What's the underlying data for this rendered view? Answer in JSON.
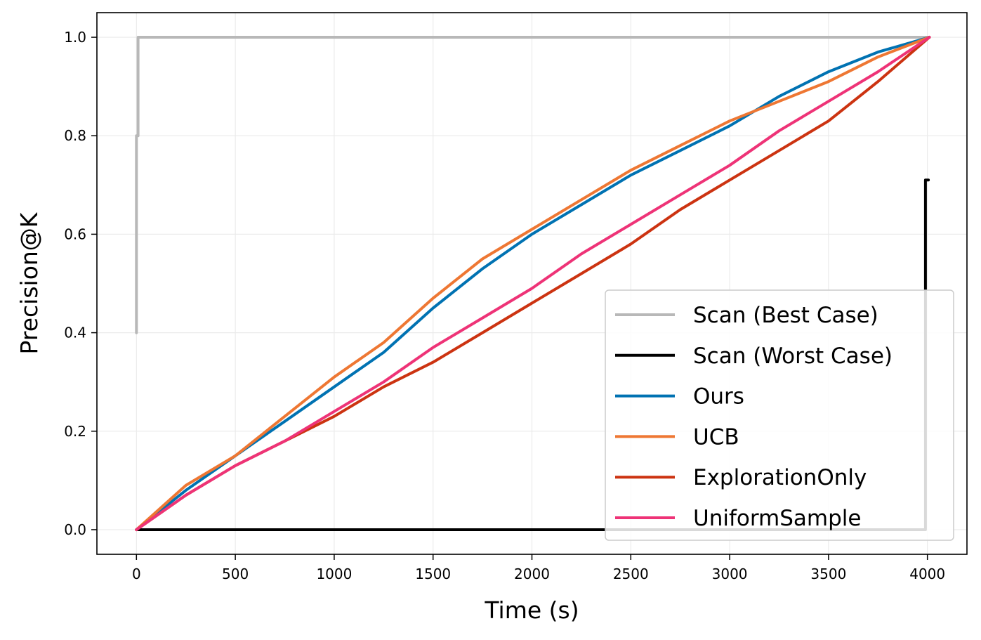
{
  "chart_data": {
    "type": "line",
    "title": "",
    "xlabel": "Time (s)",
    "ylabel": "Precision@K",
    "xlim": [
      -200,
      4200
    ],
    "ylim": [
      -0.05,
      1.05
    ],
    "xticks": [
      0,
      500,
      1000,
      1500,
      2000,
      2500,
      3000,
      3500,
      4000
    ],
    "xtick_labels": [
      "0",
      "500",
      "1000",
      "1500",
      "2000",
      "2500",
      "3000",
      "3500",
      "4000"
    ],
    "yticks": [
      0.0,
      0.2,
      0.4,
      0.6,
      0.8,
      1.0
    ],
    "ytick_labels": [
      "0.0",
      "0.2",
      "0.4",
      "0.6",
      "0.8",
      "1.0"
    ],
    "grid": true,
    "legend_position": "lower-right",
    "series": [
      {
        "name": "Scan (Best Case)",
        "color": "#b8b8b8",
        "x": [
          0,
          0,
          8,
          8,
          15,
          4010
        ],
        "y": [
          0.4,
          0.8,
          0.8,
          1.0,
          1.0,
          1.0
        ]
      },
      {
        "name": "Scan (Worst Case)",
        "color": "#000000",
        "x": [
          0,
          3990,
          3990,
          4000,
          4005
        ],
        "y": [
          0.0,
          0.0,
          0.71,
          0.71,
          0.71
        ]
      },
      {
        "name": "Ours",
        "color": "#0072b2",
        "x": [
          0,
          250,
          500,
          750,
          1000,
          1250,
          1500,
          1750,
          2000,
          2250,
          2500,
          2750,
          3000,
          3250,
          3500,
          3750,
          4010
        ],
        "y": [
          0.0,
          0.08,
          0.15,
          0.22,
          0.29,
          0.36,
          0.45,
          0.53,
          0.6,
          0.66,
          0.72,
          0.77,
          0.82,
          0.88,
          0.93,
          0.97,
          1.0
        ]
      },
      {
        "name": "UCB",
        "color": "#ee7733",
        "x": [
          0,
          250,
          500,
          750,
          1000,
          1250,
          1500,
          1750,
          2000,
          2250,
          2500,
          2750,
          3000,
          3250,
          3500,
          3750,
          4010
        ],
        "y": [
          0.0,
          0.09,
          0.15,
          0.23,
          0.31,
          0.38,
          0.47,
          0.55,
          0.61,
          0.67,
          0.73,
          0.78,
          0.83,
          0.87,
          0.91,
          0.96,
          1.0
        ]
      },
      {
        "name": "ExplorationOnly",
        "color": "#cc3311",
        "x": [
          0,
          250,
          500,
          750,
          1000,
          1250,
          1500,
          1750,
          2000,
          2250,
          2500,
          2750,
          3000,
          3250,
          3500,
          3750,
          4010
        ],
        "y": [
          0.0,
          0.07,
          0.13,
          0.18,
          0.23,
          0.29,
          0.34,
          0.4,
          0.46,
          0.52,
          0.58,
          0.65,
          0.71,
          0.77,
          0.83,
          0.91,
          1.0
        ]
      },
      {
        "name": "UniformSample",
        "color": "#ee3377",
        "x": [
          0,
          250,
          500,
          750,
          1000,
          1250,
          1500,
          1750,
          2000,
          2250,
          2500,
          2750,
          3000,
          3250,
          3500,
          3750,
          4010
        ],
        "y": [
          0.0,
          0.07,
          0.13,
          0.18,
          0.24,
          0.3,
          0.37,
          0.43,
          0.49,
          0.56,
          0.62,
          0.68,
          0.74,
          0.81,
          0.87,
          0.93,
          1.0
        ]
      }
    ]
  }
}
